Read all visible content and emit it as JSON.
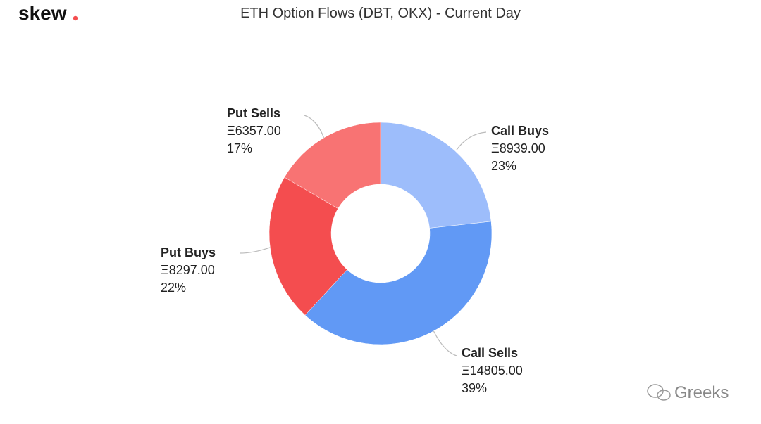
{
  "logo": "skew",
  "watermark": "Greeks",
  "chart_data": {
    "type": "donut",
    "title": "ETH Option Flows (DBT, OKX) - Current Day",
    "categories": [
      "Call Buys",
      "Call Sells",
      "Put Buys",
      "Put Sells"
    ],
    "values": [
      8939,
      14805,
      8297,
      6357
    ],
    "value_labels": [
      "Ξ8939.00",
      "Ξ14805.00",
      "Ξ8297.00",
      "Ξ6357.00"
    ],
    "shares": [
      {
        "value": 23,
        "label": "23%"
      },
      {
        "value": 39,
        "label": "39%"
      },
      {
        "value": 22,
        "label": "22%"
      },
      {
        "value": 17,
        "label": "17%"
      }
    ],
    "colors": [
      "#9dbdfb",
      "#6199f5",
      "#f44d4f",
      "#f87373"
    ]
  }
}
